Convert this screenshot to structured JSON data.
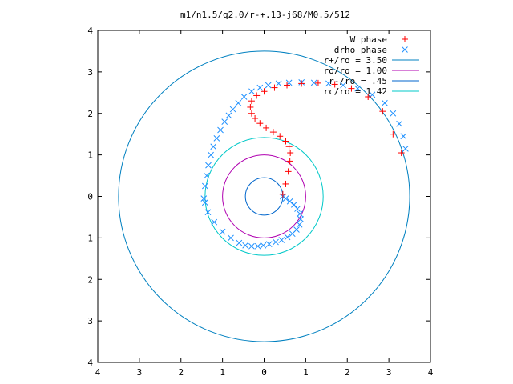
{
  "chart_data": {
    "type": "scatter",
    "title": "m1/n1.5/q2.0/r-+.13-j68/M0.5/512",
    "xlim": [
      -4,
      4
    ],
    "ylim": [
      -4,
      4
    ],
    "xticks": [
      -4,
      -3,
      -2,
      -1,
      0,
      1,
      2,
      3,
      4
    ],
    "yticks": [
      -4,
      -3,
      -2,
      -1,
      0,
      1,
      2,
      3,
      4
    ],
    "xtick_labels": [
      "4",
      "3",
      "2",
      "1",
      "0",
      "1",
      "2",
      "3",
      "4"
    ],
    "ytick_labels": [
      "4",
      "3",
      "2",
      "1",
      "0",
      "1",
      "2",
      "3",
      "4"
    ],
    "grid": false,
    "legend_position": "top-right",
    "legend": [
      {
        "label": "W phase",
        "marker": "plus",
        "color": "#ff0000"
      },
      {
        "label": "drho phase",
        "marker": "x",
        "color": "#1e90ff"
      },
      {
        "label": "r+/ro = 3.50",
        "line": true,
        "color": "#0080c0"
      },
      {
        "label": "ro/ro = 1.00",
        "line": true,
        "color": "#b000b0"
      },
      {
        "label": "r-/ro = .45",
        "line": true,
        "color": "#0066cc"
      },
      {
        "label": "rc/ro = 1.42",
        "line": true,
        "color": "#00c8c8"
      }
    ],
    "circles": [
      {
        "name": "r+/ro = 3.50",
        "r": 3.5,
        "color": "#0080c0"
      },
      {
        "name": "ro/ro = 1.00",
        "r": 1.0,
        "color": "#b000b0"
      },
      {
        "name": "r-/ro = .45",
        "r": 0.45,
        "color": "#0066cc"
      },
      {
        "name": "rc/ro = 1.42",
        "r": 1.42,
        "color": "#00c8c8"
      }
    ],
    "series": [
      {
        "name": "W phase",
        "color": "#ff0000",
        "x": [
          0.45,
          0.52,
          0.58,
          0.62,
          0.63,
          0.6,
          0.52,
          0.38,
          0.22,
          0.05,
          -0.1,
          -0.22,
          -0.3,
          -0.33,
          -0.3,
          -0.18,
          0.0,
          0.25,
          0.55,
          0.9,
          1.3,
          1.7,
          2.1,
          2.5,
          2.85,
          3.1,
          3.3
        ],
        "y": [
          0.05,
          0.3,
          0.6,
          0.85,
          1.05,
          1.2,
          1.33,
          1.45,
          1.55,
          1.65,
          1.76,
          1.88,
          2.0,
          2.15,
          2.3,
          2.43,
          2.53,
          2.62,
          2.68,
          2.72,
          2.73,
          2.7,
          2.6,
          2.4,
          2.05,
          1.5,
          1.05
        ]
      },
      {
        "name": "drho phase",
        "color": "#1e90ff",
        "x": [
          -1.45,
          -1.42,
          -1.38,
          -1.34,
          -1.28,
          -1.22,
          -1.14,
          -1.05,
          -0.95,
          -0.85,
          -0.75,
          -0.62,
          -0.48,
          -0.3,
          -0.1,
          0.1,
          0.35,
          0.6,
          0.9,
          1.2,
          1.55,
          1.9,
          2.25,
          2.6,
          2.9,
          3.1,
          3.25,
          3.35,
          3.4,
          0.45,
          0.52,
          0.62,
          0.72,
          0.8,
          0.86,
          0.88,
          0.85,
          0.78,
          0.68,
          0.56,
          0.42,
          0.28,
          0.12,
          -0.02,
          -0.15,
          -0.3,
          -0.45,
          -0.6,
          -0.8,
          -1.0,
          -1.2,
          -1.35,
          -1.42
        ],
        "y": [
          -0.05,
          0.25,
          0.5,
          0.75,
          1.0,
          1.2,
          1.4,
          1.6,
          1.8,
          1.95,
          2.1,
          2.25,
          2.4,
          2.53,
          2.62,
          2.68,
          2.72,
          2.74,
          2.75,
          2.74,
          2.72,
          2.68,
          2.6,
          2.45,
          2.25,
          2.0,
          1.75,
          1.45,
          1.15,
          0.0,
          -0.05,
          -0.12,
          -0.2,
          -0.3,
          -0.42,
          -0.55,
          -0.68,
          -0.8,
          -0.9,
          -0.98,
          -1.05,
          -1.1,
          -1.15,
          -1.18,
          -1.2,
          -1.2,
          -1.18,
          -1.12,
          -1.0,
          -0.85,
          -0.62,
          -0.38,
          -0.15
        ]
      }
    ]
  }
}
